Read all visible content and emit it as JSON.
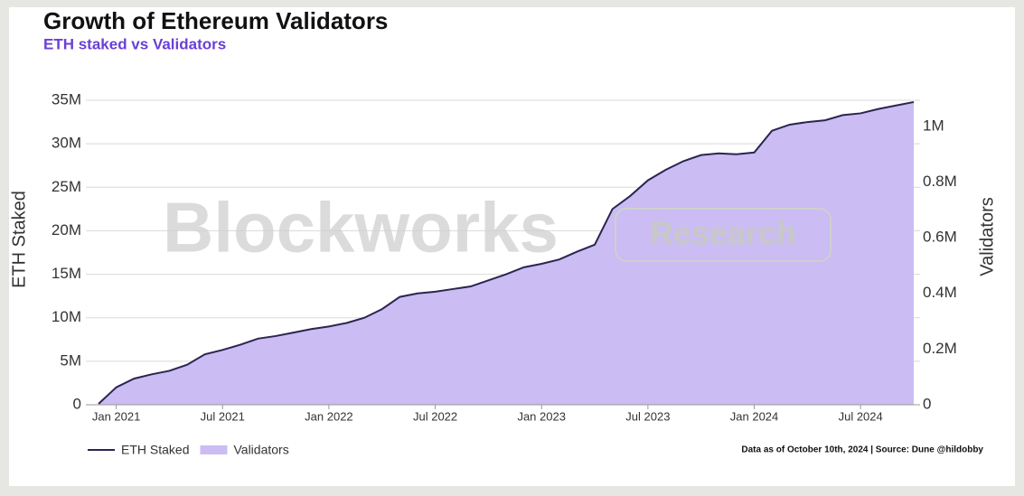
{
  "chart_data": {
    "type": "line-area",
    "title": "Growth of Ethereum Validators",
    "subtitle": "ETH staked vs Validators",
    "watermark": "Blockworks",
    "watermark_badge": "Research",
    "y_label": "ETH Staked",
    "y2_label": "Validators",
    "note": "Data as of October 10th, 2024 | Source: Dune @hildobby",
    "x": [
      "2020-12",
      "2021-01",
      "2021-02",
      "2021-03",
      "2021-04",
      "2021-05",
      "2021-06",
      "2021-07",
      "2021-08",
      "2021-09",
      "2021-10",
      "2021-11",
      "2021-12",
      "2022-01",
      "2022-02",
      "2022-03",
      "2022-04",
      "2022-05",
      "2022-06",
      "2022-07",
      "2022-08",
      "2022-09",
      "2022-10",
      "2022-11",
      "2022-12",
      "2023-01",
      "2023-02",
      "2023-03",
      "2023-04",
      "2023-05",
      "2023-06",
      "2023-07",
      "2023-08",
      "2023-09",
      "2023-10",
      "2023-11",
      "2023-12",
      "2024-01",
      "2024-02",
      "2024-03",
      "2024-04",
      "2024-05",
      "2024-06",
      "2024-07",
      "2024-08",
      "2024-09",
      "2024-10"
    ],
    "xlim": [
      "2020-12",
      "2024-10"
    ],
    "xticks": [
      {
        "value": "2021-01",
        "label": "Jan 2021"
      },
      {
        "value": "2021-07",
        "label": "Jul 2021"
      },
      {
        "value": "2022-01",
        "label": "Jan 2022"
      },
      {
        "value": "2022-07",
        "label": "Jul 2022"
      },
      {
        "value": "2023-01",
        "label": "Jan 2023"
      },
      {
        "value": "2023-07",
        "label": "Jul 2023"
      },
      {
        "value": "2024-01",
        "label": "Jan 2024"
      },
      {
        "value": "2024-07",
        "label": "Jul 2024"
      }
    ],
    "series": [
      {
        "name": "Validators",
        "color": "#cbbcf3",
        "axis": "y2",
        "kind": "area",
        "values": [
          3000,
          62000,
          94000,
          109000,
          122000,
          144000,
          181000,
          197000,
          216000,
          238000,
          247000,
          259000,
          272000,
          281000,
          294000,
          313000,
          344000,
          388000,
          400000,
          406000,
          416000,
          425000,
          447000,
          469000,
          494000,
          506000,
          522000,
          550000,
          575000,
          703000,
          750000,
          806000,
          844000,
          875000,
          897000,
          903000,
          900000,
          906000,
          984000,
          1006000,
          1016000,
          1022000,
          1041000,
          1047000,
          1063000,
          1075000,
          1088000
        ]
      },
      {
        "name": "ETH Staked",
        "color": "#2b2550",
        "axis": "y",
        "kind": "line",
        "values": [
          100000,
          2000000,
          3000000,
          3500000,
          3900000,
          4600000,
          5800000,
          6300000,
          6900000,
          7600000,
          7900000,
          8300000,
          8700000,
          9000000,
          9400000,
          10000000,
          11000000,
          12400000,
          12800000,
          13000000,
          13300000,
          13600000,
          14300000,
          15000000,
          15800000,
          16200000,
          16700000,
          17600000,
          18400000,
          22500000,
          24000000,
          25800000,
          27000000,
          28000000,
          28700000,
          28900000,
          28800000,
          29000000,
          31500000,
          32200000,
          32500000,
          32700000,
          33300000,
          33500000,
          34000000,
          34400000,
          34800000
        ]
      }
    ],
    "ylim": [
      0,
      35000000
    ],
    "yticks": [
      0,
      {
        "value": 5000000,
        "label": "5M"
      },
      {
        "value": 10000000,
        "label": "10M"
      },
      {
        "value": 15000000,
        "label": "15M"
      },
      {
        "value": 20000000,
        "label": "20M"
      },
      {
        "value": 25000000,
        "label": "25M"
      },
      {
        "value": 30000000,
        "label": "30M"
      },
      {
        "value": 35000000,
        "label": "35M"
      }
    ],
    "y2lim": [
      0,
      1093750
    ],
    "y2ticks": [
      0,
      {
        "value": 200000,
        "label": "0.2M"
      },
      {
        "value": 400000,
        "label": "0.4M"
      },
      {
        "value": 600000,
        "label": "0.6M"
      },
      {
        "value": 800000,
        "label": "0.8M"
      },
      {
        "value": 1000000,
        "label": "1M"
      }
    ],
    "grid": true
  }
}
